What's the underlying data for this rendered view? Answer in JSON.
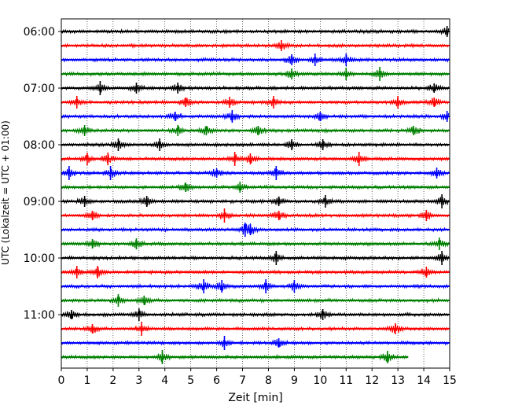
{
  "chart_data": {
    "type": "line",
    "title": "",
    "xlabel": "Zeit  [min]",
    "ylabel": "UTC (Lokalzeit = UTC + 01:00)",
    "xlim": [
      0,
      15
    ],
    "xticks": [
      0,
      1,
      2,
      3,
      4,
      5,
      6,
      7,
      8,
      9,
      10,
      11,
      12,
      13,
      14,
      15
    ],
    "ytick_labels": [
      "06:00",
      "07:00",
      "08:00",
      "09:00",
      "10:00",
      "11:00"
    ],
    "ytick_traces": [
      0,
      4,
      8,
      12,
      16,
      20
    ],
    "grid": {
      "x": "dotted",
      "y": "none"
    },
    "color_cycle": [
      "#000000",
      "#ff0000",
      "#0000ff",
      "#008000"
    ],
    "trace_interval_minutes": 15,
    "traces": [
      {
        "start": "06:00",
        "color": "#000000",
        "x_end": 15,
        "spikes": [
          14.9
        ]
      },
      {
        "start": "06:15",
        "color": "#ff0000",
        "x_end": 15,
        "spikes": [
          8.5
        ]
      },
      {
        "start": "06:30",
        "color": "#0000ff",
        "x_end": 15,
        "spikes": [
          8.9,
          9.8,
          11.0
        ]
      },
      {
        "start": "06:45",
        "color": "#008000",
        "x_end": 15,
        "spikes": [
          8.9,
          11.0,
          12.3
        ]
      },
      {
        "start": "07:00",
        "color": "#000000",
        "x_end": 15,
        "spikes": [
          1.5,
          2.9,
          4.5,
          14.4
        ]
      },
      {
        "start": "07:15",
        "color": "#ff0000",
        "x_end": 15,
        "spikes": [
          0.6,
          4.8,
          6.5,
          8.2,
          13.0,
          14.4
        ]
      },
      {
        "start": "07:30",
        "color": "#0000ff",
        "x_end": 15,
        "spikes": [
          4.4,
          6.6,
          10.0,
          14.9
        ]
      },
      {
        "start": "07:45",
        "color": "#008000",
        "x_end": 15,
        "spikes": [
          0.9,
          4.5,
          5.6,
          7.6,
          13.6
        ]
      },
      {
        "start": "08:00",
        "color": "#000000",
        "x_end": 15,
        "spikes": [
          2.2,
          3.8,
          8.9,
          10.1
        ]
      },
      {
        "start": "08:15",
        "color": "#ff0000",
        "x_end": 15,
        "spikes": [
          1.0,
          1.8,
          6.7,
          7.3,
          11.5
        ]
      },
      {
        "start": "08:30",
        "color": "#0000ff",
        "x_end": 15,
        "spikes": [
          0.3,
          1.9,
          6.0,
          8.3,
          14.5
        ]
      },
      {
        "start": "08:45",
        "color": "#008000",
        "x_end": 15,
        "spikes": [
          4.8,
          6.9
        ]
      },
      {
        "start": "09:00",
        "color": "#000000",
        "x_end": 15,
        "spikes": [
          0.9,
          3.3,
          8.4,
          10.2,
          14.7
        ]
      },
      {
        "start": "09:15",
        "color": "#ff0000",
        "x_end": 15,
        "spikes": [
          1.2,
          6.3,
          8.4,
          14.1
        ]
      },
      {
        "start": "09:30",
        "color": "#0000ff",
        "x_end": 15,
        "spikes": [
          7.1,
          7.3
        ]
      },
      {
        "start": "09:45",
        "color": "#008000",
        "x_end": 15,
        "spikes": [
          1.2,
          2.9,
          14.6
        ]
      },
      {
        "start": "10:00",
        "color": "#000000",
        "x_end": 15,
        "spikes": [
          8.3,
          14.7
        ]
      },
      {
        "start": "10:15",
        "color": "#ff0000",
        "x_end": 15,
        "spikes": [
          0.6,
          1.4,
          14.1
        ]
      },
      {
        "start": "10:30",
        "color": "#0000ff",
        "x_end": 15,
        "spikes": [
          5.5,
          6.2,
          7.9,
          9.0
        ]
      },
      {
        "start": "10:45",
        "color": "#008000",
        "x_end": 15,
        "spikes": [
          2.2,
          3.2
        ]
      },
      {
        "start": "11:00",
        "color": "#000000",
        "x_end": 15,
        "spikes": [
          0.4,
          3.0,
          10.1
        ]
      },
      {
        "start": "11:15",
        "color": "#ff0000",
        "x_end": 15,
        "spikes": [
          1.2,
          3.1,
          12.9
        ]
      },
      {
        "start": "11:30",
        "color": "#0000ff",
        "x_end": 15,
        "spikes": [
          6.3,
          8.4
        ]
      },
      {
        "start": "11:45",
        "color": "#008000",
        "x_end": 13.4,
        "spikes": [
          3.9,
          12.6
        ]
      }
    ]
  }
}
